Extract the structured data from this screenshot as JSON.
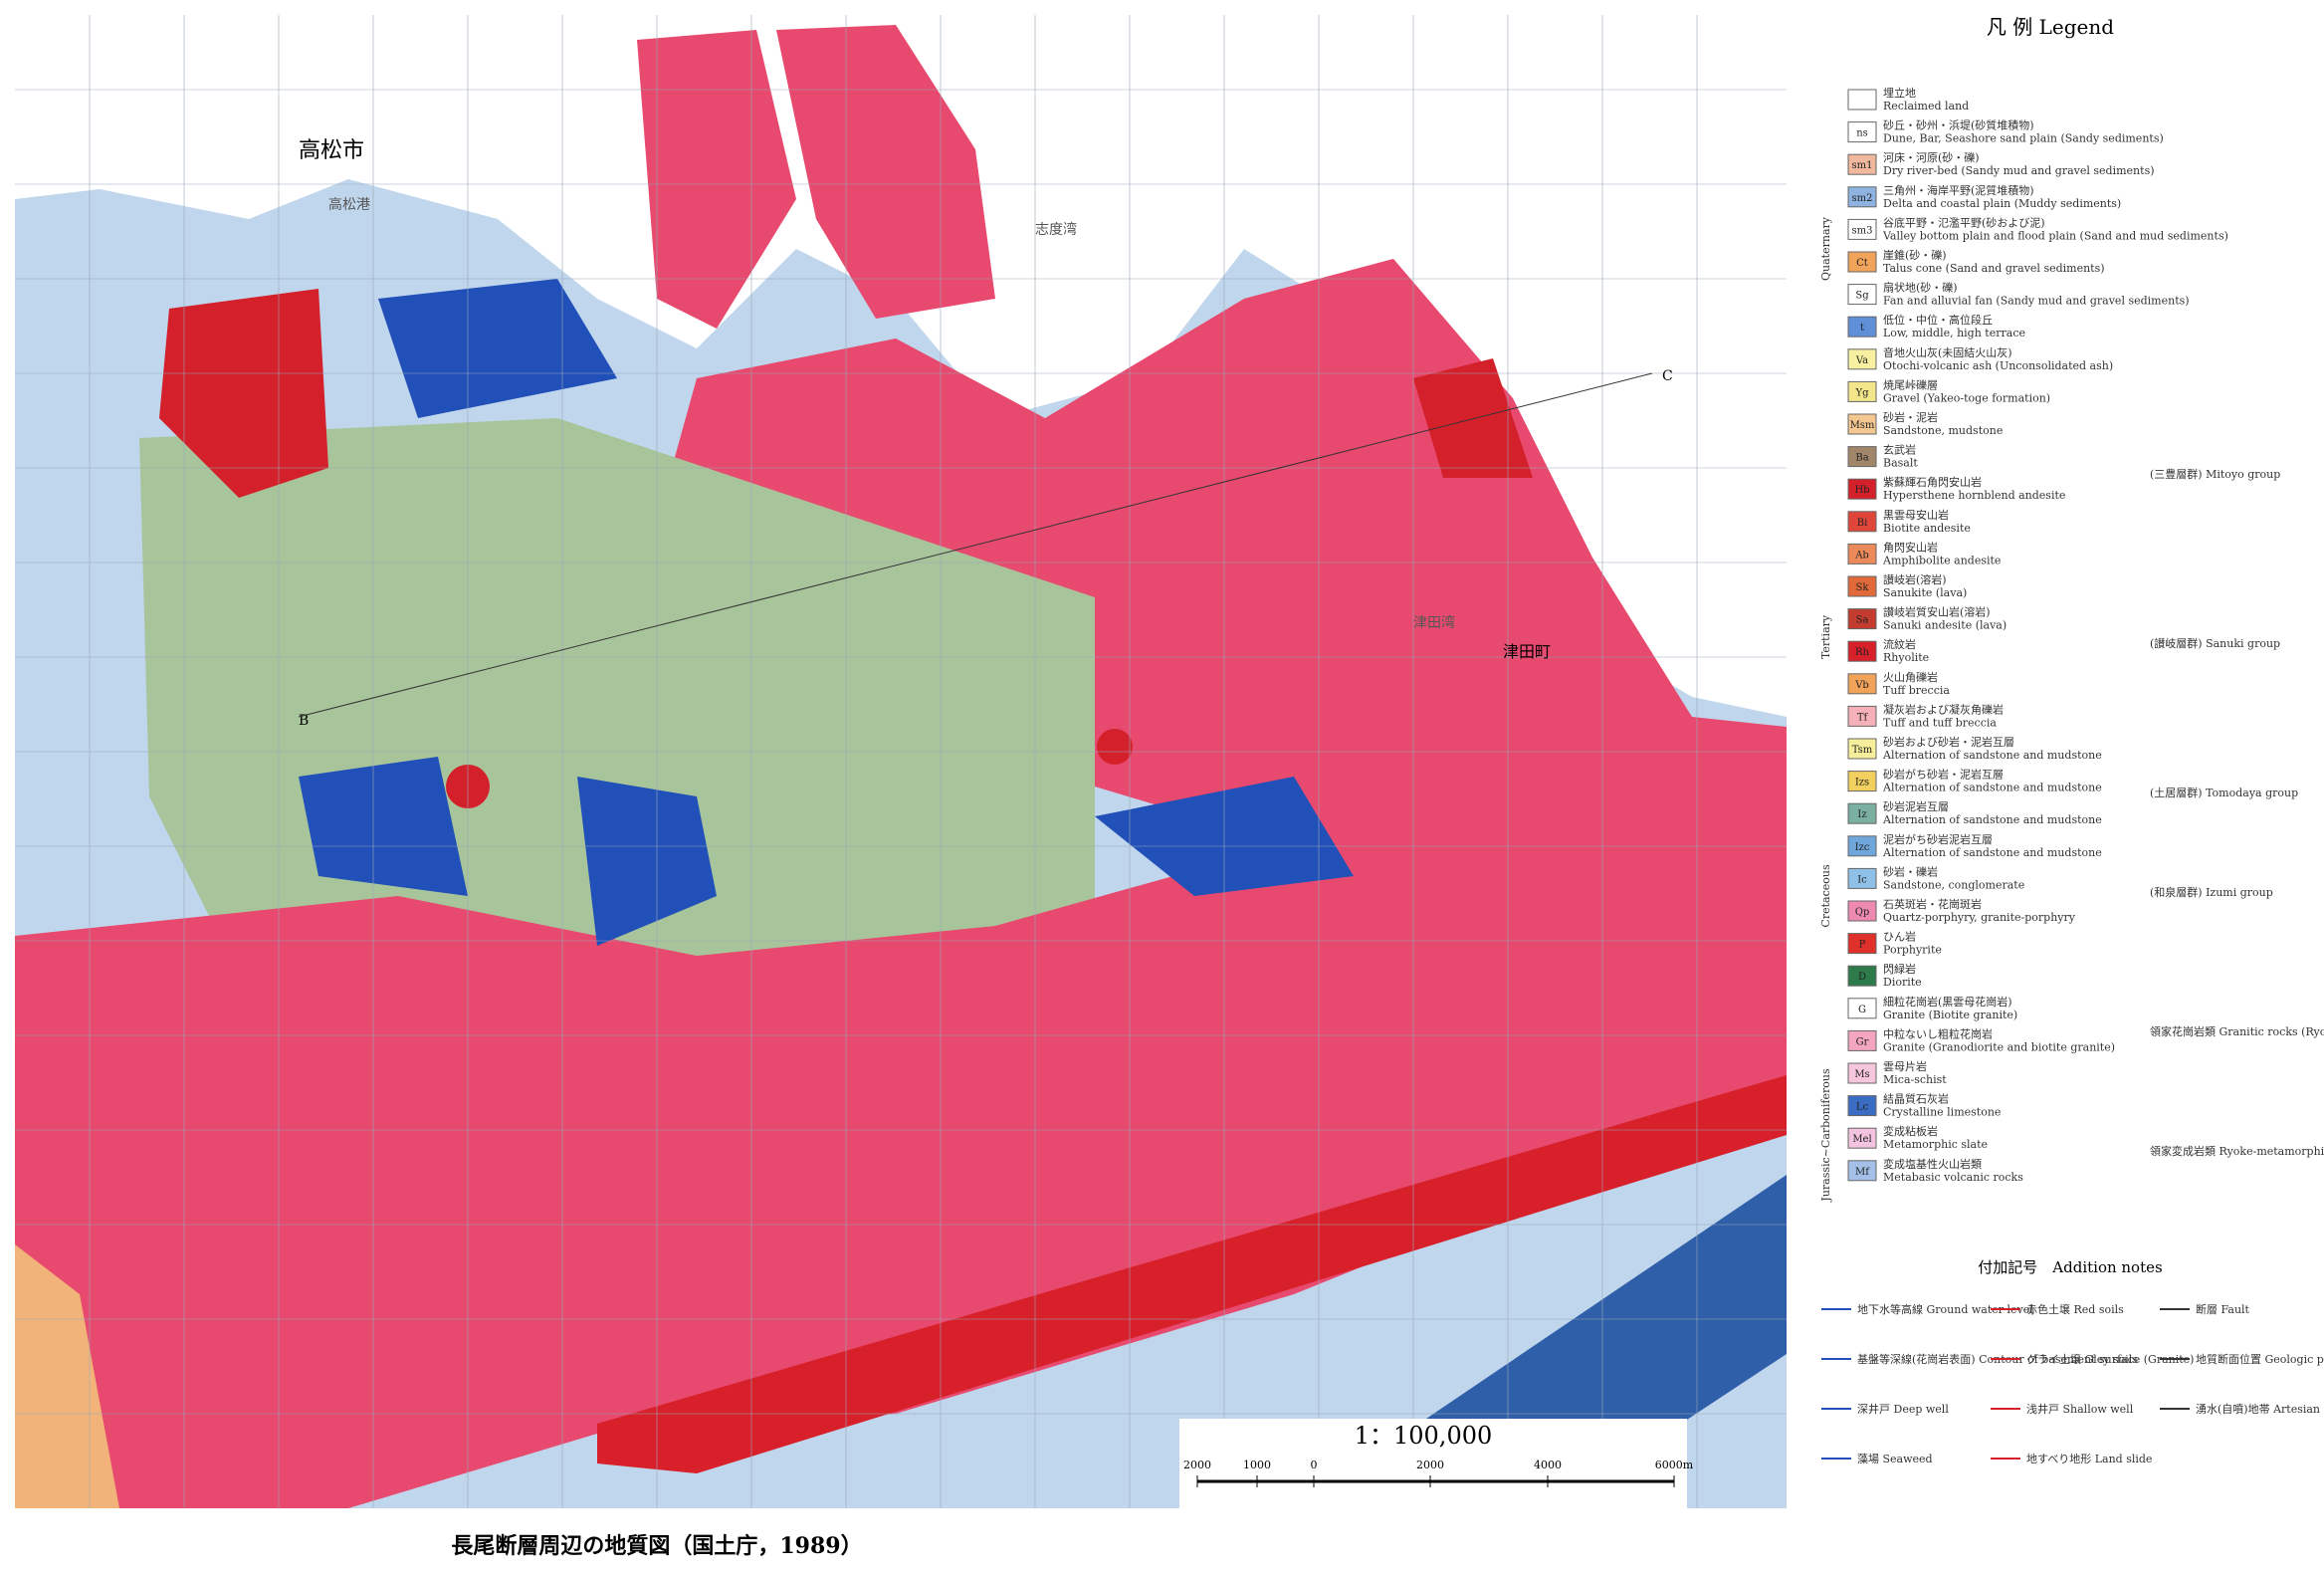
{
  "map": {
    "place_names": [
      "高松市",
      "高松港",
      "志度湾",
      "津田湾",
      "津田町",
      "C",
      "B"
    ]
  },
  "legend": {
    "title": "凡 例 Legend",
    "entries": [
      {
        "code": "",
        "jp": "埋立地",
        "en": "Reclaimed land",
        "color": "#ffffff"
      },
      {
        "code": "ns",
        "jp": "砂丘・砂州・浜堤(砂質堆積物)",
        "en": "Dune, Bar, Seashore sand plain (Sandy sediments)",
        "color": "#ffffff"
      },
      {
        "code": "sm1",
        "jp": "河床・河原(砂・礫)",
        "en": "Dry river-bed (Sandy mud and gravel sediments)",
        "color": "#f0b89c"
      },
      {
        "code": "sm2",
        "jp": "三角州・海岸平野(泥質堆積物)",
        "en": "Delta and coastal plain (Muddy sediments)",
        "color": "#8fb3e0"
      },
      {
        "code": "sm3",
        "jp": "谷底平野・氾濫平野(砂および泥)",
        "en": "Valley bottom plain and flood plain (Sand and mud sediments)",
        "color": "#ffffff"
      },
      {
        "code": "Ct",
        "jp": "崖錐(砂・礫)",
        "en": "Talus cone (Sand and gravel sediments)",
        "color": "#f2a35a"
      },
      {
        "code": "Sg",
        "jp": "扇状地(砂・礫)",
        "en": "Fan and alluvial fan (Sandy mud and gravel sediments)",
        "color": "#ffffff"
      },
      {
        "code": "t",
        "jp": "低位・中位・高位段丘",
        "en": "Low, middle, high terrace",
        "color": "#5f8fd6"
      },
      {
        "code": "Va",
        "jp": "音地火山灰(未固結火山灰)",
        "en": "Otochi-volcanic ash (Unconsolidated ash)",
        "color": "#f6f0a0"
      },
      {
        "code": "Yg",
        "jp": "焼尾峠礫層",
        "en": "Gravel (Yakeo-toge formation)",
        "color": "#f3e68a"
      },
      {
        "code": "Msm",
        "jp": "砂岩・泥岩",
        "en": "Sandstone, mudstone",
        "color": "#f4c690"
      },
      {
        "code": "Ba",
        "jp": "玄武岩",
        "en": "Basalt",
        "color": "#a2866a"
      },
      {
        "code": "Hb",
        "jp": "紫蘇輝石角閃安山岩",
        "en": "Hypersthene hornblend andesite",
        "color": "#d3202b"
      },
      {
        "code": "Bi",
        "jp": "黒雲母安山岩",
        "en": "Biotite andesite",
        "color": "#e0453a"
      },
      {
        "code": "Ab",
        "jp": "角閃安山岩",
        "en": "Amphibolite andesite",
        "color": "#ec8a5a"
      },
      {
        "code": "Sk",
        "jp": "讃岐岩(溶岩)",
        "en": "Sanukite (lava)",
        "color": "#e26a3a"
      },
      {
        "code": "Sa",
        "jp": "讃岐岩質安山岩(溶岩)",
        "en": "Sanuki andesite (lava)",
        "color": "#c43b30"
      },
      {
        "code": "Rh",
        "jp": "流紋岩",
        "en": "Rhyolite",
        "color": "#d8202a"
      },
      {
        "code": "Vb",
        "jp": "火山角礫岩",
        "en": "Tuff breccia",
        "color": "#f1a35a"
      },
      {
        "code": "Tf",
        "jp": "凝灰岩および凝灰角礫岩",
        "en": "Tuff and tuff breccia",
        "color": "#f6b0b8"
      },
      {
        "code": "Tsm",
        "jp": "砂岩および砂岩・泥岩互層",
        "en": "Alternation of sandstone and mudstone",
        "color": "#f6ee9a"
      },
      {
        "code": "Izs",
        "jp": "砂岩がち砂岩・泥岩互層",
        "en": "Alternation of sandstone and mudstone",
        "color": "#f2d060"
      },
      {
        "code": "Iz",
        "jp": "砂岩泥岩互層",
        "en": "Alternation of sandstone and mudstone",
        "color": "#7bb0a0"
      },
      {
        "code": "Izc",
        "jp": "泥岩がち砂岩泥岩互層",
        "en": "Alternation of sandstone and mudstone",
        "color": "#6fa6dc"
      },
      {
        "code": "Ic",
        "jp": "砂岩・礫岩",
        "en": "Sandstone, conglomerate",
        "color": "#8fc0e8"
      },
      {
        "code": "Qp",
        "jp": "石英斑岩・花崗斑岩",
        "en": "Quartz-porphyry, granite-porphyry",
        "color": "#ee8ab0"
      },
      {
        "code": "P",
        "jp": "ひん岩",
        "en": "Porphyrite",
        "color": "#e0302a"
      },
      {
        "code": "D",
        "jp": "閃緑岩",
        "en": "Diorite",
        "color": "#2d7a4a"
      },
      {
        "code": "G",
        "jp": "細粒花崗岩(黒雲母花崗岩)",
        "en": "Granite (Biotite granite)",
        "color": "#ffffff"
      },
      {
        "code": "Gr",
        "jp": "中粒ないし粗粒花崗岩",
        "en": "Granite (Granodiorite and biotite granite)",
        "color": "#f4a6c0"
      },
      {
        "code": "Ms",
        "jp": "雲母片岩",
        "en": "Mica-schist",
        "color": "#f6c6dc"
      },
      {
        "code": "Lc",
        "jp": "結晶質石灰岩",
        "en": "Crystalline limestone",
        "color": "#3b6cc4"
      },
      {
        "code": "Mel",
        "jp": "変成粘板岩",
        "en": "Metamorphic slate",
        "color": "#f3c4e0"
      },
      {
        "code": "Mf",
        "jp": "変成塩基性火山岩類",
        "en": "Metabasic volcanic rocks",
        "color": "#a4c0e8"
      }
    ],
    "groups": [
      "(三豊層群) Mitoyo group",
      "(讃岐層群) Sanuki group",
      "(土居層群) Tomodaya group",
      "(和泉層群) Izumi group",
      "領家花崗岩類 Granitic rocks (Ryoke-granite)",
      "領家変成岩類 Ryoke-metamorphic rocks"
    ],
    "eras": [
      "Quaternary",
      "Tertiary",
      "Cretaceous",
      "Jurassic~Carboniferous"
    ]
  },
  "notes": {
    "title": "付加記号　Addition notes",
    "items": [
      "地下水等高線 Ground water level",
      "赤色土壌 Red soils",
      "断層 Fault",
      "基盤等深線(花崗岩表面) Contour of basement surface (Granite)",
      "グライ土壌 Gley soils",
      "地質断面位置 Geologic profile line",
      "深井戸 Deep well",
      "浅井戸 Shallow well",
      "湧水(自噴)地帯 Artesian zone",
      "藻場 Seaweed",
      "地すべり地形 Land slide"
    ]
  },
  "scale": {
    "ratio": "1：100,000",
    "labels": [
      "2000",
      "1000",
      "0",
      "2000",
      "4000",
      "6000m"
    ]
  },
  "caption": "長尾断層周辺の地質図（国土庁，1989）"
}
